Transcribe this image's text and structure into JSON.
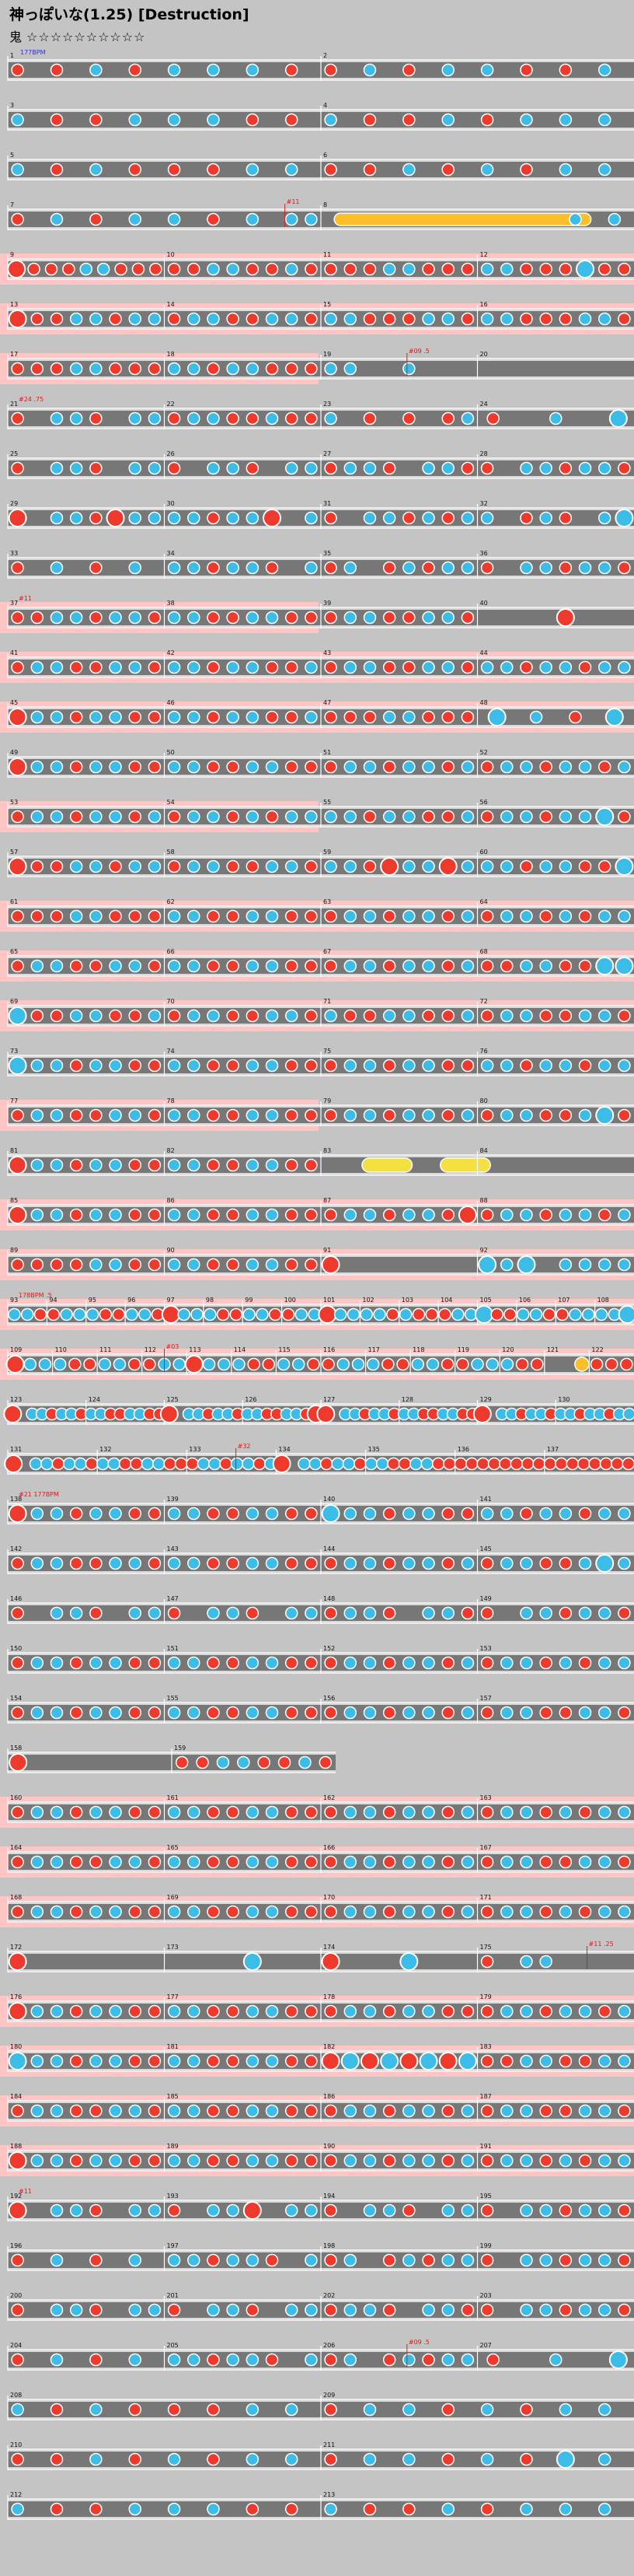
{
  "title": "神っぽいな(1.25) [Destruction]",
  "difficulty": {
    "label": "鬼",
    "stars": "☆☆☆☆☆☆☆☆☆☆"
  },
  "colors": {
    "background": "#c4c4c4",
    "lane": "#777777",
    "lane_gogo": "#ffc4c4",
    "don": "#ee3a2c",
    "ka": "#3cbde8",
    "roll": "#fcbf2a",
    "bpm_text": "#3030d0",
    "event_text": "#d02020",
    "barline": "#ffffff"
  },
  "icons": {
    "don": "don-note-icon",
    "ka": "ka-note-icon",
    "roll": "drumroll-icon"
  },
  "chart_data": {
    "type": "rhythm-chart",
    "game": "Taiko no Tatsujin",
    "start_label": "177BPM",
    "rows": [
      {
        "m": [
          1,
          2
        ],
        "n": "d.d.k.d.k.k.k.d.|d.k.d.k.k.d.d.k."
      },
      {
        "m": [
          3,
          4
        ],
        "n": "k.d.d.k.k.k.d.d.|k.d.d.k.d.k.k.k."
      },
      {
        "m": [
          5,
          6
        ],
        "n": "k.d.k.d.d.d.k.k.|d.d.k.d.k.d.k.k."
      },
      {
        "m": [
          7,
          8
        ],
        "n": "d.k.d.k.k.d.k.kk|R.....kk",
        "ev": [
          {
            "at": 1.77,
            "t": "#11"
          }
        ]
      },
      {
        "m": [
          9,
          10,
          11,
          12
        ],
        "n": "Ddddkkddd|ddkkddkd|dddkkddd|kkdddKdd",
        "g": 1
      },
      {
        "m": [
          13,
          14,
          15,
          16
        ],
        "n": "Dddkkdkk|dkkddkkd|kkdddkkd|kkdddkkd",
        "g": 1
      },
      {
        "m": [
          17,
          18,
          19,
          20
        ],
        "n": "dddkkddd|kkdkkddd|kk..k...|....",
        "ev": [
          {
            "at": 2.55,
            "t": "#09 .5"
          }
        ],
        "g": 2
      },
      {
        "m": [
          21,
          22,
          23,
          24
        ],
        "n": "d.kkd.kk|dkkddkdd|k.d.d.dk|d.k.K",
        "lab": "#24 .75"
      },
      {
        "m": [
          25,
          26,
          27,
          28
        ],
        "n": "d.kkd.kk|d.kkd.kk|dkkd.kkd|d.kkdkkd"
      },
      {
        "m": [
          29,
          30,
          31,
          32
        ],
        "n": "D.kkdDkk|kkdkkD.k|d.kkdkdk|k.dkd.kK"
      },
      {
        "m": [
          33,
          34,
          35,
          36
        ],
        "n": "d.k.d.k.|kkdkkd.k|dk.dkdkk|d.kkdkkd"
      },
      {
        "m": [
          37,
          38,
          39,
          40
        ],
        "n": "ddkkdkkd|kkddkkdd|dkkddkkd|....D...",
        "lab": "#11",
        "g": 3
      },
      {
        "m": [
          41,
          42,
          43,
          44
        ],
        "n": "dkkddkkd|kkdkkddk|dkkddkkd|kkdkkdkk",
        "g": 1
      },
      {
        "m": [
          45,
          46,
          47,
          48
        ],
        "n": "Dkkdkkdd|kkdkkddk|dddkkddd|KkdK",
        "g": 1
      },
      {
        "m": [
          49,
          50,
          51,
          52
        ],
        "n": "Dkkdkkdd|kkddkkdd|dkkdkkdk|dkkdkkdk"
      },
      {
        "m": [
          53,
          54,
          55,
          56
        ],
        "n": "dkkdkkdk|dkkdkdkk|kkdkkddk|dkkdkkKd",
        "g": 3
      },
      {
        "m": [
          57,
          58,
          59,
          60
        ],
        "n": "Dddkkdkk|dkkddkkd|kkdDkkDk|kkdkkddK"
      },
      {
        "m": [
          61,
          62,
          63,
          64
        ],
        "n": "dddkkddd|kkddkkdd|dkkdkkdk|dkkdkdkk",
        "g": 1
      },
      {
        "m": [
          65,
          66,
          67,
          68
        ],
        "n": "dkkddkkd|kkddkkdd|dkkdkkdk|ddkkddKK",
        "g": 1
      },
      {
        "m": [
          69,
          70,
          71,
          72
        ],
        "n": "Kddkkddk|dkkddkkd|kddkkddk|dkkddkkd",
        "g": 1
      },
      {
        "m": [
          73,
          74,
          75,
          76
        ],
        "n": "Kkkdkkdd|kkddkkdd|dkkdkkdd|kkdkkdkk"
      },
      {
        "m": [
          77,
          78,
          79,
          80
        ],
        "n": "dkkddkkd|kkddkkdd|dkkdkkdk|dkkddkKd",
        "g": 3
      },
      {
        "m": [
          81,
          82,
          83,
          84
        ],
        "n": "Dkkdkkdd|kkddkkdd|..Y...Y.|........",
        "roll": [
          [
            2.15,
            2.42
          ],
          [
            2.6,
            2.85
          ]
        ]
      },
      {
        "m": [
          85,
          86,
          87,
          88
        ],
        "n": "Dkkdkkdd|kkddkkdd|dkkdkkdD|dkkdkkdk",
        "g": 1
      },
      {
        "m": [
          89,
          90,
          91,
          92
        ],
        "n": "ddddkkdd|kkddkkdd|D.......|KkK.kkkk",
        "g": 1
      },
      {
        "m": [
          93,
          94,
          95,
          96,
          97,
          98,
          99,
          100,
          101,
          102,
          103,
          104,
          105,
          106,
          107,
          108
        ],
        "n": "kkd|dkk|kdd|kkd|Dkk|kdd|kkd|dkk|Dkk|kkd|kdd|dkk|Kdd|kkd|dkk|kkK",
        "lab": "178BPM .5",
        "g": 4
      },
      {
        "m": [
          109,
          110,
          111,
          112,
          113,
          114,
          115,
          116,
          117,
          118,
          119,
          120,
          121,
          122
        ],
        "n": "Dkk|kdd|kkd|dkk|Dkk|kdd|kkd|dkk|kdd|kkd|dkk|kdd|..B|ddd",
        "ev": [
          {
            "at": 3.5,
            "t": "#03"
          }
        ],
        "g": 4
      },
      {
        "m": [
          123,
          124,
          125,
          126,
          127,
          128,
          129,
          130
        ],
        "n": "D.kkdkkd|kkddkkdd|D.kkdkkd|kkddkkdD|D.kkdkkd|kkddkkdd|D.kkdkkd|kkdkkdkk"
      },
      {
        "m": [
          131,
          132,
          133,
          134,
          135,
          136,
          137
        ],
        "n": "D.kkdkkd|kkddkkdd|dkkdkkdk|D.kkdkkd|kkddkkdd|dddddddd|dddddddd",
        "ev": [
          {
            "at": 2.55,
            "t": "#32"
          }
        ]
      },
      {
        "m": [
          138,
          139,
          140,
          141
        ],
        "n": "Dkkdkkdd|kkddkkdd|Kkkdkkdd|kkdkkdkk",
        "lab": "#21 177BPM"
      },
      {
        "m": [
          142,
          143,
          144,
          145
        ],
        "n": "dkkddkkd|kkddkkdd|dkkdkkdk|dkkddkKk"
      },
      {
        "m": [
          146,
          147,
          148,
          149
        ],
        "n": "d.kkd.kk|d.kkd.kk|dkkd.kkd|d.kkdkkd"
      },
      {
        "m": [
          150,
          151,
          152,
          153
        ],
        "n": "dkkdkkdd|kkddkkdd|dkkdkkdk|dkkdkdkk"
      },
      {
        "m": [
          154,
          155,
          156,
          157
        ],
        "n": "dkkdkkdd|kkddkkdd|dkkdkkdk|dkkddkkd"
      },
      {
        "m": [
          158,
          159
        ],
        "n": "D.......|ddkkddkd",
        "short": 1
      },
      {
        "m": [
          160,
          161,
          162,
          163
        ],
        "n": "dkkdkkdd|kkddkkdd|dkkdkkdk|dkkdkdkk",
        "g": 1
      },
      {
        "m": [
          164,
          165,
          166,
          167
        ],
        "n": "dkkddkkd|kkddkkdd|dkkdkkdk|dkkddkkd",
        "g": 1
      },
      {
        "m": [
          168,
          169,
          170,
          171
        ],
        "n": "dkkdkkdd|kkddkkdd|dkkdkkdk|dkkdkdkk",
        "g": 1
      },
      {
        "m": [
          172,
          173,
          174,
          175
        ],
        "n": "D.......|....K...|D...K...|d.kk....",
        "ev": [
          {
            "at": 3.7,
            "t": "#11 .25"
          }
        ]
      },
      {
        "m": [
          176,
          177,
          178,
          179
        ],
        "n": "Dkkdkkdd|kkddkkdd|dkkdkkdd|dkkdkkdk",
        "g": 1
      },
      {
        "m": [
          180,
          181,
          182,
          183
        ],
        "n": "Kkkdkkdd|kkddkkdd|DKDKDKDK|ddkkddkk",
        "g": 1
      },
      {
        "m": [
          184,
          185,
          186,
          187
        ],
        "n": "dkkddkkd|kkddkkdd|dkkdkkdk|dkkddkkd",
        "g": 1
      },
      {
        "m": [
          188,
          189,
          190,
          191
        ],
        "n": "Dkkdkkdd|kkddkkdd|dkkdkkdk|dkkdkdkk",
        "g": 1
      },
      {
        "m": [
          192,
          193,
          194,
          195
        ],
        "n": "D.kkd.kk|d.kkD.kk|d.kkd.kk|d.kkdkkd",
        "lab": "#11"
      },
      {
        "m": [
          196,
          197,
          198,
          199
        ],
        "n": "d.k.d.k.|kkdkkd.k|dk.dkdkk|d.kkdkkd"
      },
      {
        "m": [
          200,
          201,
          202,
          203
        ],
        "n": "d.kkd.kk|d.kkd.kk|dkkd.kkd|d.kkdkkd"
      },
      {
        "m": [
          204,
          205,
          206,
          207
        ],
        "n": "d.k.d.k.|kkdkkd.k|dk.dkdkk|d.k.K",
        "ev": [
          {
            "at": 2.55,
            "t": "#09 .5"
          }
        ]
      },
      {
        "m": [
          208,
          209
        ],
        "n": "k.d.k.d.d.d.k.k.|d.k.k.d.k.d.k.k."
      },
      {
        "m": [
          210,
          211
        ],
        "n": "d.d.k.d.k.d.k.k.|d.k.k.d.k.d.K.k."
      },
      {
        "m": [
          212,
          213
        ],
        "n": "k.d.d.k.k.k.d.d.|k.d.d.k.d.k.k.k."
      }
    ]
  }
}
